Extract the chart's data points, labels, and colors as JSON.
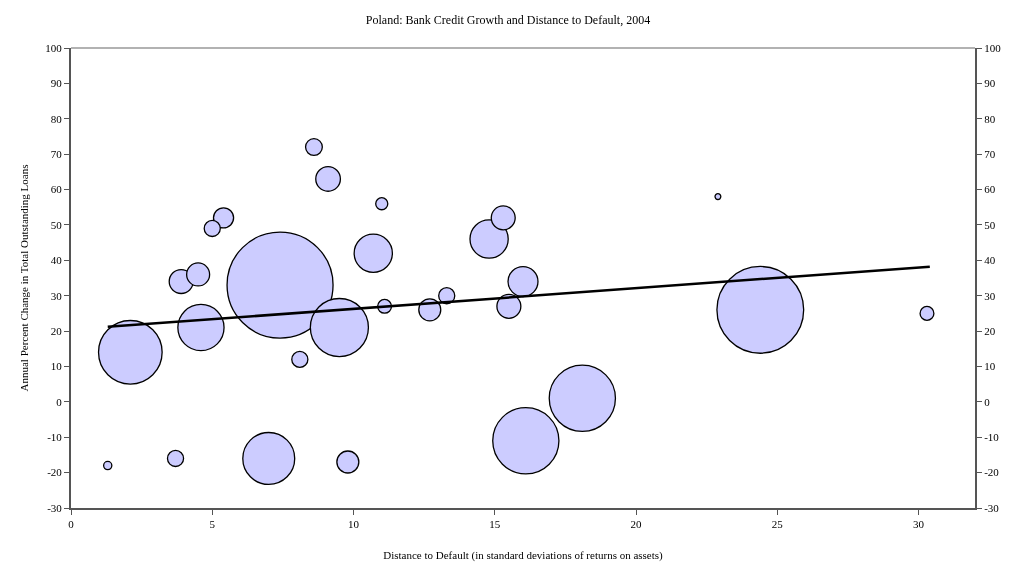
{
  "chart_data": {
    "type": "bubble",
    "title": "Poland: Bank Credit Growth and Distance to Default, 2004",
    "xlabel": "Distance to Default (in standard deviations of returns on assets)",
    "ylabel": "Annual Percent Change in Total Outstanding Loans",
    "xlim": [
      0,
      32
    ],
    "xticks": [
      0,
      5,
      10,
      15,
      20,
      25,
      30
    ],
    "ylim": [
      -30,
      100
    ],
    "yticks": [
      -30,
      -20,
      -10,
      0,
      10,
      20,
      30,
      40,
      50,
      60,
      70,
      80,
      90,
      100
    ],
    "y2lim": [
      -30,
      100
    ],
    "y2ticks": [
      -30,
      -20,
      -10,
      0,
      10,
      20,
      30,
      40,
      50,
      60,
      70,
      80,
      90,
      100
    ],
    "series": [
      {
        "color": "#ccccff",
        "x": [
          8.6,
          9.1,
          11.0,
          5.4,
          5.0,
          10.7,
          14.8,
          15.3,
          7.4,
          3.9,
          4.5,
          2.1,
          4.6,
          9.5,
          8.1,
          11.1,
          12.7,
          13.3,
          1.3,
          3.7,
          7.0,
          9.8,
          15.5,
          16.0,
          16.1,
          18.1,
          24.4,
          30.3,
          22.9
        ],
        "values": [
          72,
          63,
          56,
          52,
          49,
          42,
          46,
          52,
          33,
          34,
          36,
          14,
          21,
          21,
          12,
          27,
          26,
          30,
          -18,
          -16,
          -16,
          -17,
          27,
          34,
          -11,
          1,
          26,
          25,
          58
        ],
        "sizes": [
          0.025,
          0.054,
          0.013,
          0.036,
          0.023,
          0.13,
          0.13,
          0.051,
          1,
          0.051,
          0.047,
          0.36,
          0.19,
          0.3,
          0.023,
          0.017,
          0.043,
          0.023,
          0.006,
          0.023,
          0.24,
          0.043,
          0.051,
          0.08,
          0.39,
          0.39,
          0.67,
          0.017,
          0.003
        ]
      },
      {
        "type": "line",
        "color": "#000000",
        "x": [
          1.3,
          30.4
        ],
        "values": [
          21.2,
          38.2
        ]
      }
    ]
  }
}
